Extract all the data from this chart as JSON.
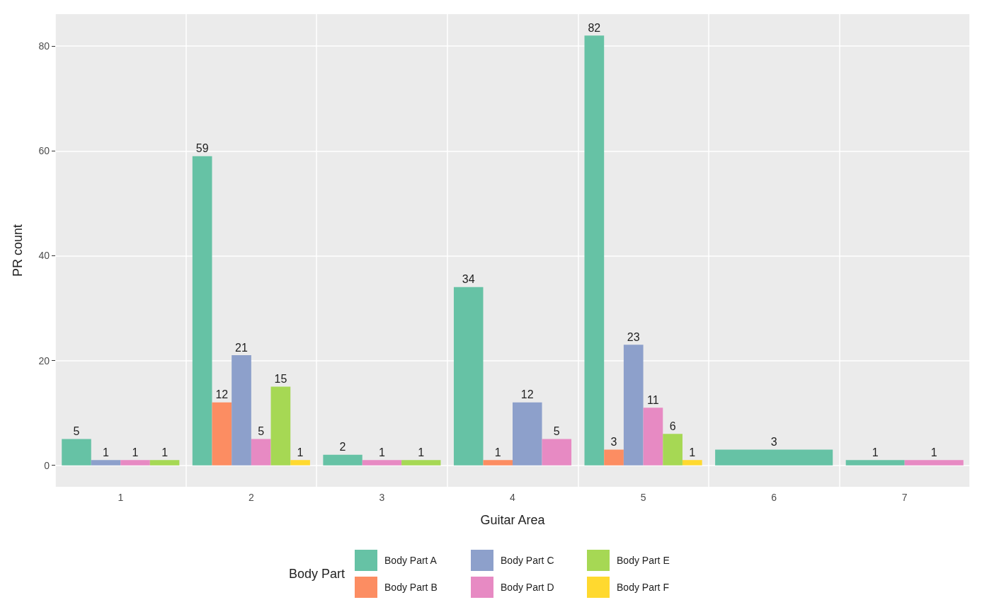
{
  "chart_data": {
    "type": "bar",
    "xlabel": "Guitar Area",
    "ylabel": "PR count",
    "legend_title": "Body Part",
    "categories": [
      "1",
      "2",
      "3",
      "4",
      "5",
      "6",
      "7"
    ],
    "series": [
      {
        "name": "Body Part A",
        "color": "#66c2a5",
        "values": [
          5,
          59,
          2,
          34,
          82,
          3,
          1
        ]
      },
      {
        "name": "Body Part B",
        "color": "#fc8d62",
        "values": [
          null,
          12,
          null,
          1,
          3,
          null,
          null
        ]
      },
      {
        "name": "Body Part C",
        "color": "#8da0cb",
        "values": [
          1,
          21,
          null,
          12,
          23,
          null,
          null
        ]
      },
      {
        "name": "Body Part D",
        "color": "#e78ac3",
        "values": [
          1,
          5,
          1,
          5,
          11,
          null,
          1
        ]
      },
      {
        "name": "Body Part E",
        "color": "#a6d854",
        "values": [
          1,
          15,
          1,
          null,
          6,
          null,
          null
        ]
      },
      {
        "name": "Body Part F",
        "color": "#ffd92f",
        "values": [
          null,
          1,
          null,
          null,
          1,
          null,
          null
        ]
      }
    ],
    "ylim": [
      -4.1,
      86.1
    ],
    "yticks": [
      0,
      20,
      40,
      60,
      80
    ],
    "grid": true,
    "legend": "bottom",
    "data_labels": true
  }
}
